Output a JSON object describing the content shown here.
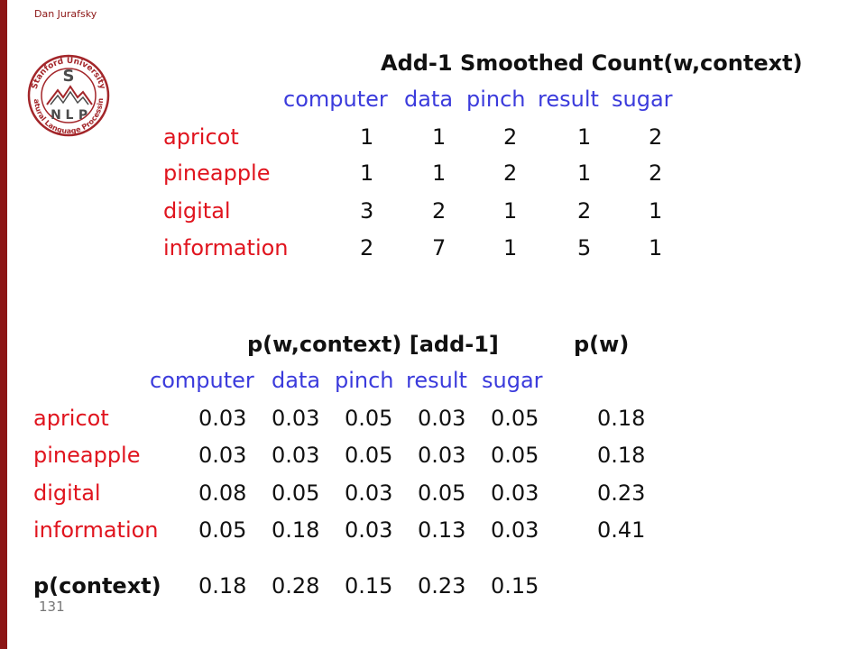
{
  "author": "Dan Jurafsky",
  "page_number": "131",
  "logo": {
    "top_text": "Stanford University",
    "bottom_text": "Natural Language Processing",
    "initial": "S",
    "letters": [
      "N",
      "L",
      "P"
    ]
  },
  "table1": {
    "title": "Add-1 Smoothed Count(w,context)",
    "columns": [
      "computer",
      "data",
      "pinch",
      "result",
      "sugar"
    ],
    "rows": [
      {
        "label": "apricot",
        "values": [
          "1",
          "1",
          "2",
          "1",
          "2"
        ]
      },
      {
        "label": "pineapple",
        "values": [
          "1",
          "1",
          "2",
          "1",
          "2"
        ]
      },
      {
        "label": "digital",
        "values": [
          "3",
          "2",
          "1",
          "2",
          "1"
        ]
      },
      {
        "label": "information",
        "values": [
          "2",
          "7",
          "1",
          "5",
          "1"
        ]
      }
    ]
  },
  "table2": {
    "title": "p(w,context) [add-1]",
    "pw_title": "p(w)",
    "columns": [
      "computer",
      "data",
      "pinch",
      "result",
      "sugar"
    ],
    "rows": [
      {
        "label": "apricot",
        "values": [
          "0.03",
          "0.03",
          "0.05",
          "0.03",
          "0.05"
        ],
        "pw": "0.18"
      },
      {
        "label": "pineapple",
        "values": [
          "0.03",
          "0.03",
          "0.05",
          "0.03",
          "0.05"
        ],
        "pw": "0.18"
      },
      {
        "label": "digital",
        "values": [
          "0.08",
          "0.05",
          "0.03",
          "0.05",
          "0.03"
        ],
        "pw": "0.23"
      },
      {
        "label": "information",
        "values": [
          "0.05",
          "0.18",
          "0.03",
          "0.13",
          "0.03"
        ],
        "pw": "0.41"
      }
    ],
    "context_label": "p(context)",
    "context_values": [
      "0.18",
      "0.28",
      "0.15",
      "0.23",
      "0.15"
    ]
  }
}
